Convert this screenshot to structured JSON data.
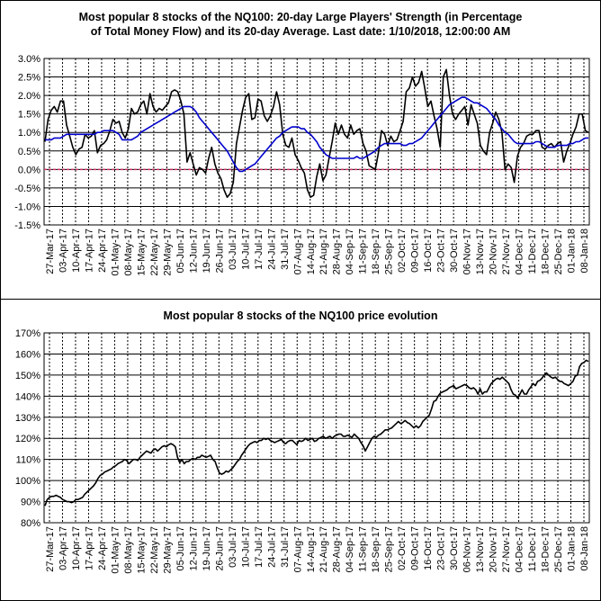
{
  "chart_data": [
    {
      "type": "line",
      "title_line1": "Most popular 8 stocks of the NQ100: 20-day Large Players' Strength (in Percentage",
      "title_line2": "of Total Money Flow) and its 20-day Average. Last date: 1/10/2018, 12:00:00 AM",
      "xlabel": "",
      "ylabel": "",
      "ylim": [
        -1.5,
        3.0
      ],
      "ytick_step": 0.5,
      "ytick_labels": [
        "3.0%",
        "2.5%",
        "2.0%",
        "1.5%",
        "1.0%",
        "0.5%",
        "0.0%",
        "-0.5%",
        "-1.0%",
        "-1.5%"
      ],
      "x_tick_labels": [
        "27-Mar-17",
        "03-Apr-17",
        "10-Apr-17",
        "17-Apr-17",
        "24-Apr-17",
        "01-May-17",
        "08-May-17",
        "15-May-17",
        "22-May-17",
        "29-May-17",
        "05-Jun-17",
        "12-Jun-17",
        "19-Jun-17",
        "26-Jun-17",
        "03-Jul-17",
        "10-Jul-17",
        "17-Jul-17",
        "24-Jul-17",
        "31-Jul-17",
        "07-Aug-17",
        "14-Aug-17",
        "21-Aug-17",
        "28-Aug-17",
        "04-Sep-17",
        "11-Sep-17",
        "18-Sep-17",
        "25-Sep-17",
        "02-Oct-17",
        "09-Oct-17",
        "16-Oct-17",
        "23-Oct-17",
        "30-Oct-17",
        "06-Nov-17",
        "13-Nov-17",
        "20-Nov-17",
        "27-Nov-17",
        "04-Dec-17",
        "11-Dec-17",
        "18-Dec-17",
        "25-Dec-17",
        "01-Jan-18",
        "08-Jan-18"
      ],
      "grid": true,
      "zero_line_color": "#cc3366",
      "series": [
        {
          "color": "#000000",
          "values": [
            0.75,
            1.35,
            1.6,
            1.7,
            1.55,
            1.85,
            1.85,
            1.2,
            0.9,
            0.6,
            0.4,
            0.55,
            0.6,
            0.95,
            0.85,
            0.9,
            1.05,
            0.45,
            0.65,
            0.7,
            0.8,
            1.05,
            1.35,
            1.25,
            1.3,
            1.0,
            0.85,
            1.1,
            1.65,
            1.5,
            1.55,
            1.75,
            1.85,
            1.5,
            2.05,
            1.7,
            1.55,
            1.65,
            1.6,
            1.7,
            1.8,
            2.1,
            2.15,
            2.1,
            1.85,
            1.5,
            0.2,
            0.45,
            0.15,
            -0.15,
            0.05,
            0.0,
            -0.1,
            0.3,
            0.6,
            0.15,
            -0.1,
            -0.25,
            -0.55,
            -0.75,
            -0.65,
            -0.35,
            0.7,
            1.15,
            1.6,
            1.95,
            2.05,
            1.35,
            1.4,
            1.9,
            1.85,
            1.45,
            1.3,
            1.45,
            1.7,
            2.1,
            1.75,
            0.95,
            0.65,
            0.6,
            0.85,
            0.4,
            0.25,
            0.05,
            -0.1,
            -0.55,
            -0.75,
            -0.7,
            -0.2,
            0.15,
            -0.3,
            -0.15,
            0.3,
            0.75,
            1.25,
            0.95,
            1.2,
            0.95,
            0.85,
            1.2,
            0.95,
            1.05,
            1.1,
            0.7,
            0.5,
            0.1,
            0.05,
            0.0,
            0.45,
            1.05,
            0.95,
            0.65,
            0.9,
            0.75,
            0.8,
            1.05,
            1.3,
            2.1,
            2.2,
            2.5,
            2.25,
            2.35,
            2.65,
            2.2,
            1.7,
            1.85,
            1.45,
            1.1,
            0.6,
            2.5,
            2.7,
            2.0,
            1.5,
            1.35,
            1.5,
            1.6,
            1.7,
            1.2,
            1.75,
            1.5,
            1.25,
            0.65,
            0.5,
            0.4,
            1.0,
            1.25,
            1.55,
            1.35,
            1.0,
            0.0,
            0.15,
            0.05,
            -0.35,
            0.35,
            0.6,
            0.7,
            0.9,
            0.95,
            0.95,
            1.05,
            1.05,
            0.6,
            0.55,
            0.65,
            0.7,
            0.6,
            0.7,
            0.75,
            0.2,
            0.5,
            0.7,
            0.95,
            1.15,
            1.5,
            1.5,
            1.05,
            1.0
          ]
        },
        {
          "color": "#0000cc",
          "values": [
            0.8,
            0.8,
            0.8,
            0.85,
            0.85,
            0.85,
            0.9,
            0.95,
            0.95,
            0.95,
            0.95,
            0.95,
            0.95,
            0.95,
            0.95,
            0.95,
            0.95,
            1.0,
            1.0,
            1.05,
            1.05,
            1.05,
            1.05,
            1.0,
            0.95,
            0.8,
            0.8,
            0.8,
            0.8,
            0.85,
            0.9,
            1.0,
            1.05,
            1.1,
            1.15,
            1.2,
            1.25,
            1.3,
            1.35,
            1.4,
            1.45,
            1.5,
            1.55,
            1.6,
            1.65,
            1.7,
            1.7,
            1.7,
            1.65,
            1.55,
            1.4,
            1.3,
            1.2,
            1.1,
            1.0,
            0.9,
            0.8,
            0.7,
            0.6,
            0.5,
            0.35,
            0.2,
            0.05,
            -0.05,
            -0.05,
            0.0,
            0.05,
            0.1,
            0.15,
            0.25,
            0.35,
            0.45,
            0.55,
            0.65,
            0.75,
            0.85,
            0.9,
            1.0,
            1.05,
            1.1,
            1.15,
            1.15,
            1.15,
            1.1,
            1.1,
            1.0,
            0.95,
            0.85,
            0.75,
            0.6,
            0.5,
            0.4,
            0.35,
            0.3,
            0.3,
            0.3,
            0.3,
            0.3,
            0.3,
            0.3,
            0.3,
            0.35,
            0.3,
            0.3,
            0.35,
            0.4,
            0.45,
            0.5,
            0.6,
            0.65,
            0.7,
            0.7,
            0.7,
            0.7,
            0.7,
            0.7,
            0.65,
            0.65,
            0.7,
            0.7,
            0.75,
            0.8,
            0.85,
            0.95,
            1.05,
            1.15,
            1.25,
            1.35,
            1.45,
            1.55,
            1.65,
            1.75,
            1.8,
            1.85,
            1.9,
            1.95,
            1.95,
            1.9,
            1.85,
            1.8,
            1.8,
            1.75,
            1.7,
            1.65,
            1.55,
            1.45,
            1.35,
            1.2,
            1.1,
            1.0,
            0.95,
            0.85,
            0.75,
            0.7,
            0.7,
            0.7,
            0.7,
            0.7,
            0.7,
            0.75,
            0.75,
            0.7,
            0.65,
            0.6,
            0.6,
            0.6,
            0.65,
            0.65,
            0.65,
            0.65,
            0.7,
            0.7,
            0.75,
            0.75,
            0.8,
            0.85,
            0.85
          ]
        }
      ]
    },
    {
      "type": "line",
      "title": "Most popular 8 stocks of the NQ100 price evolution",
      "xlabel": "",
      "ylabel": "",
      "ylim": [
        80,
        170
      ],
      "ytick_step": 10,
      "ytick_labels": [
        "170%",
        "160%",
        "150%",
        "140%",
        "130%",
        "120%",
        "110%",
        "100%",
        "90%",
        "80%"
      ],
      "x_tick_labels": [
        "27-Mar-17",
        "03-Apr-17",
        "10-Apr-17",
        "17-Apr-17",
        "24-Apr-17",
        "01-May-17",
        "08-May-17",
        "15-May-17",
        "22-May-17",
        "29-May-17",
        "05-Jun-17",
        "12-Jun-17",
        "19-Jun-17",
        "26-Jun-17",
        "03-Jul-17",
        "10-Jul-17",
        "17-Jul-17",
        "24-Jul-17",
        "31-Jul-17",
        "07-Aug-17",
        "14-Aug-17",
        "21-Aug-17",
        "28-Aug-17",
        "04-Sep-17",
        "11-Sep-17",
        "18-Sep-17",
        "25-Sep-17",
        "02-Oct-17",
        "09-Oct-17",
        "16-Oct-17",
        "23-Oct-17",
        "30-Oct-17",
        "06-Nov-17",
        "13-Nov-17",
        "20-Nov-17",
        "27-Nov-17",
        "04-Dec-17",
        "11-Dec-17",
        "18-Dec-17",
        "25-Dec-17",
        "01-Jan-18",
        "08-Jan-18"
      ],
      "grid": true,
      "series": [
        {
          "color": "#000000",
          "values": [
            88,
            91,
            92,
            92.5,
            92.5,
            93,
            92.5,
            92,
            91,
            90.5,
            90,
            90,
            89.5,
            90,
            91,
            91,
            91.5,
            92,
            93.5,
            94.5,
            95.5,
            96.5,
            97.5,
            99,
            101,
            102.5,
            103,
            104,
            104.5,
            105,
            105.5,
            106.5,
            107,
            108,
            108.5,
            109,
            110,
            109.5,
            108,
            109,
            110,
            110,
            109.5,
            111,
            112,
            113,
            114,
            113.5,
            113,
            114.5,
            115,
            114,
            115,
            116,
            116.5,
            116,
            117,
            117.5,
            117,
            116,
            111,
            108.5,
            110,
            108,
            109,
            109,
            110,
            110.5,
            110,
            111,
            111,
            112,
            111.5,
            111,
            111.5,
            112,
            110,
            109,
            106,
            103.5,
            103,
            103.5,
            104.5,
            104,
            105,
            106,
            107.5,
            109,
            110,
            112,
            113.5,
            115,
            116.5,
            117.5,
            118,
            118.5,
            118,
            119,
            119,
            120,
            119.5,
            120,
            119,
            118.5,
            118,
            118.5,
            119,
            119.5,
            118,
            117.5,
            118.5,
            119,
            119,
            118,
            117,
            119,
            118.5,
            119,
            120,
            119,
            119.5,
            120,
            118.5,
            119,
            120,
            120.5,
            121,
            120,
            120.5,
            121,
            120,
            121,
            121.5,
            122,
            122,
            121,
            121,
            121.5,
            121,
            120.5,
            122,
            121,
            120,
            118,
            116.5,
            114,
            116,
            118,
            120,
            121,
            120.5,
            121.5,
            122,
            123,
            124,
            124,
            124.5,
            125,
            126,
            127,
            128,
            127,
            127.5,
            128.5,
            127.5,
            127,
            126,
            125,
            126,
            125,
            126,
            128,
            129,
            130,
            131,
            134,
            137.5,
            138,
            140,
            141.5,
            142,
            142.5,
            143,
            144,
            144.5,
            145,
            143.5,
            144,
            144.5,
            145,
            145.5,
            145,
            144,
            143.5,
            144,
            143,
            141,
            143.5,
            141,
            142,
            142,
            144,
            146,
            147,
            148,
            148.5,
            148,
            149,
            148,
            147,
            146,
            143,
            141,
            140.5,
            139,
            141,
            143,
            141,
            141,
            143,
            144.5,
            146,
            145,
            147,
            147.5,
            148.5,
            150,
            151,
            150,
            149,
            148.5,
            149,
            148,
            147,
            147,
            146,
            145.5,
            145,
            146,
            147,
            149.5,
            150,
            154,
            155.5,
            156,
            157,
            156.5
          ]
        }
      ]
    }
  ]
}
